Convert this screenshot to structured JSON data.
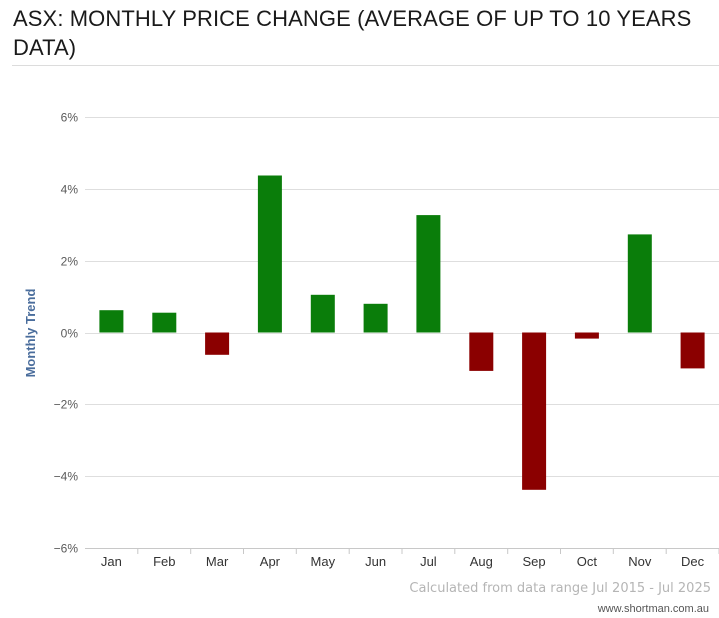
{
  "chart_data": {
    "type": "bar",
    "title": "ASX: MONTHLY PRICE CHANGE (AVERAGE OF UP TO 10 YEARS DATA)",
    "ylabel": "Monthly Trend",
    "xlabel": "",
    "categories": [
      "Jan",
      "Feb",
      "Mar",
      "Apr",
      "May",
      "Jun",
      "Jul",
      "Aug",
      "Sep",
      "Oct",
      "Nov",
      "Dec"
    ],
    "values": [
      0.62,
      0.55,
      -0.62,
      4.37,
      1.05,
      0.8,
      3.27,
      -1.07,
      -4.38,
      -0.17,
      2.73,
      -1.0
    ],
    "ylim": [
      -6,
      6
    ],
    "yticks": [
      6,
      4,
      2,
      0,
      -2,
      -4,
      -6
    ],
    "ytick_labels": [
      "6%",
      "4%",
      "2%",
      "0%",
      "−2%",
      "−4%",
      "−6%"
    ],
    "grid": true,
    "legend": "none",
    "positive_color": "#0a7d0a",
    "negative_color": "#8b0000",
    "caption": "Calculated from data range Jul 2015 - Jul 2025",
    "source": "www.shortman.com.au"
  }
}
